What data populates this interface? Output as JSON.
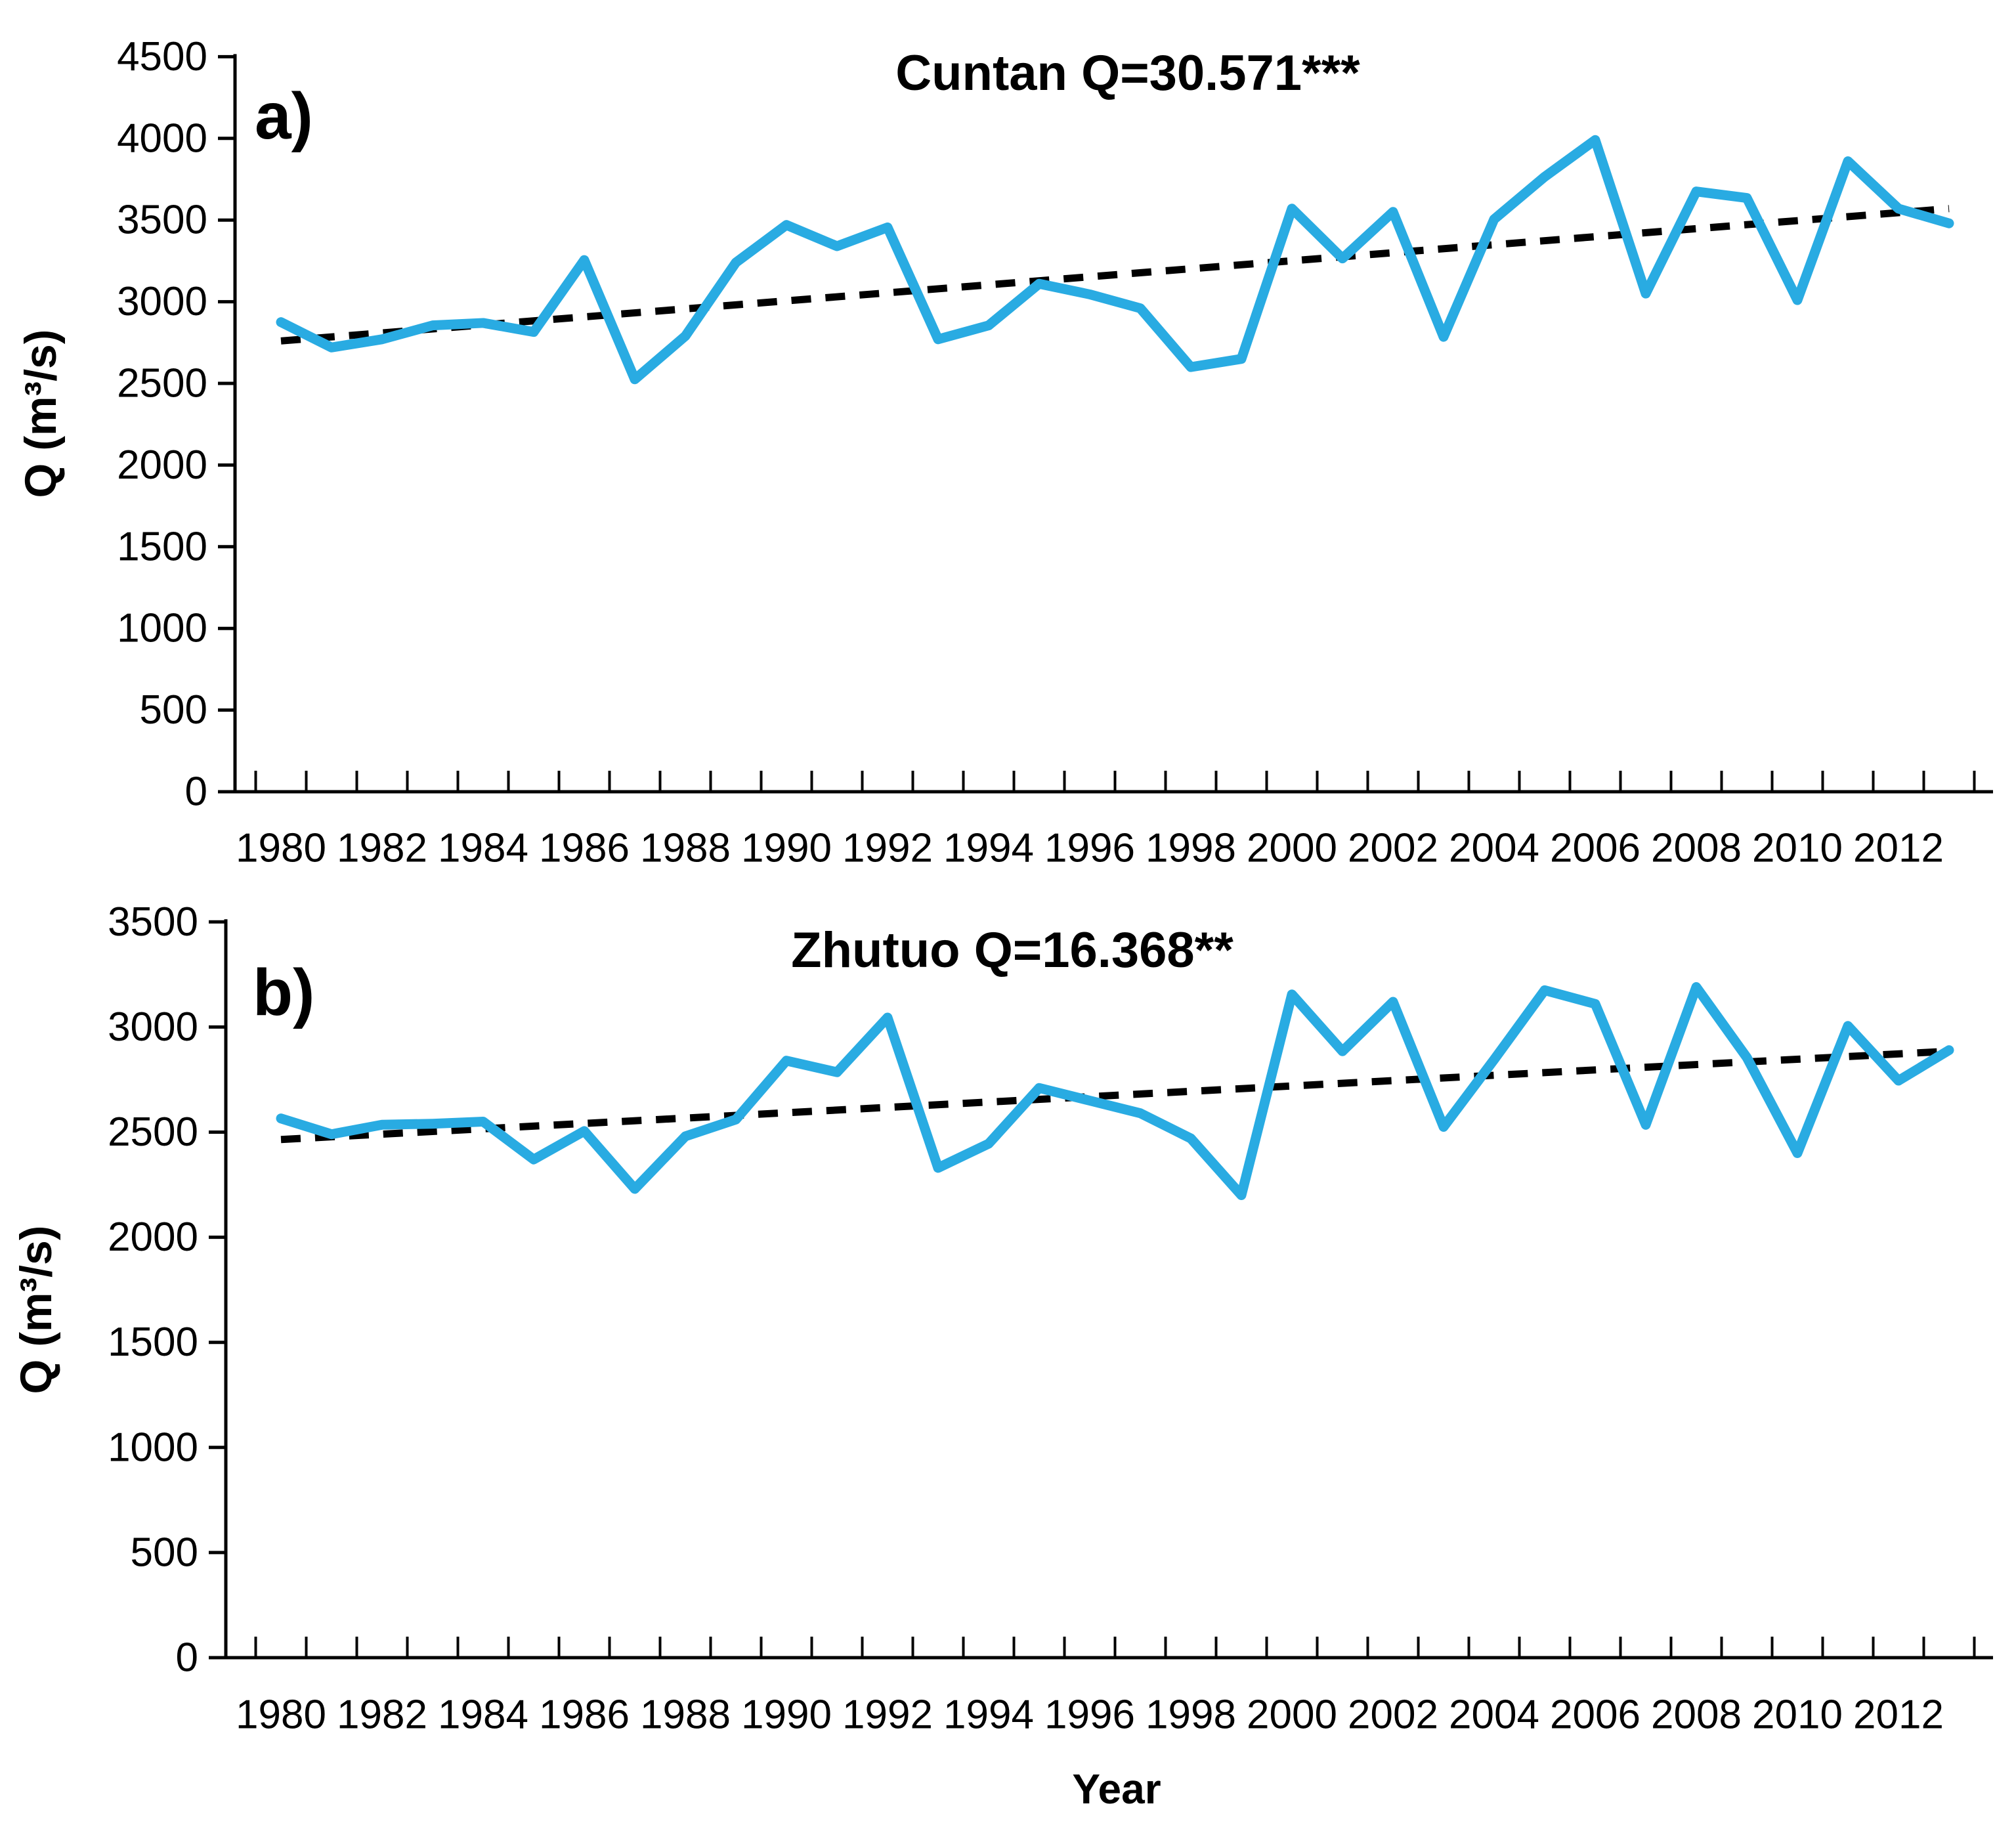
{
  "figure": {
    "background": "#ffffff",
    "series_color": "#29ABE2",
    "trend_color": "#000000"
  },
  "chart_data": [
    {
      "id": "a",
      "type": "line",
      "panel_label": "a)",
      "title": "Cuntan Q=30.571***",
      "ylabel": "Q (m³/s)",
      "xlabel": "",
      "legend": "none",
      "grid": "off",
      "x": [
        1980,
        1981,
        1982,
        1983,
        1984,
        1985,
        1986,
        1987,
        1988,
        1989,
        1990,
        1991,
        1992,
        1993,
        1994,
        1995,
        1996,
        1997,
        1998,
        1999,
        2000,
        2001,
        2002,
        2003,
        2004,
        2005,
        2006,
        2007,
        2008,
        2009,
        2010,
        2011,
        2012,
        2013
      ],
      "values": [
        2875,
        2720,
        2770,
        2855,
        2870,
        2815,
        3255,
        2525,
        2790,
        3240,
        3470,
        3340,
        3455,
        2770,
        2855,
        3110,
        3045,
        2960,
        2600,
        2650,
        3570,
        3265,
        3550,
        2785,
        3505,
        3765,
        3990,
        3050,
        3675,
        3635,
        3010,
        3860,
        3570,
        3480
      ],
      "trend": {
        "style": "dashed",
        "start_value": 2760,
        "end_value": 3570
      },
      "ylim": [
        0,
        4500
      ],
      "y_ticks": [
        0,
        500,
        1000,
        1500,
        2000,
        2500,
        3000,
        3500,
        4000,
        4500
      ],
      "x_tick_labels": [
        "1980",
        "1982",
        "1984",
        "1986",
        "1988",
        "1990",
        "1992",
        "1994",
        "1996",
        "1998",
        "2000",
        "2002",
        "2004",
        "2006",
        "2008",
        "2010",
        "2012"
      ]
    },
    {
      "id": "b",
      "type": "line",
      "panel_label": "b)",
      "title": "Zhutuo Q=16.368**",
      "ylabel": "Q (m³/s)",
      "xlabel": "Year",
      "legend": "none",
      "grid": "off",
      "x": [
        1980,
        1981,
        1982,
        1983,
        1984,
        1985,
        1986,
        1987,
        1988,
        1989,
        1990,
        1991,
        1992,
        1993,
        1994,
        1995,
        1996,
        1997,
        1998,
        1999,
        2000,
        2001,
        2002,
        2003,
        2004,
        2005,
        2006,
        2007,
        2008,
        2009,
        2010,
        2011,
        2012,
        2013
      ],
      "values": [
        2565,
        2490,
        2535,
        2540,
        2550,
        2370,
        2505,
        2230,
        2480,
        2560,
        2840,
        2785,
        3045,
        2330,
        2445,
        2710,
        2650,
        2590,
        2470,
        2200,
        3155,
        2885,
        3120,
        2525,
        2845,
        3175,
        3110,
        2535,
        3190,
        2855,
        2400,
        3005,
        2745,
        2890
      ],
      "trend": {
        "style": "dashed",
        "start_value": 2465,
        "end_value": 2885
      },
      "ylim": [
        0,
        3500
      ],
      "y_ticks": [
        0,
        500,
        1000,
        1500,
        2000,
        2500,
        3000,
        3500
      ],
      "x_tick_labels": [
        "1980",
        "1982",
        "1984",
        "1986",
        "1988",
        "1990",
        "1992",
        "1994",
        "1996",
        "1998",
        "2000",
        "2002",
        "2004",
        "2006",
        "2008",
        "2010",
        "2012"
      ]
    }
  ]
}
